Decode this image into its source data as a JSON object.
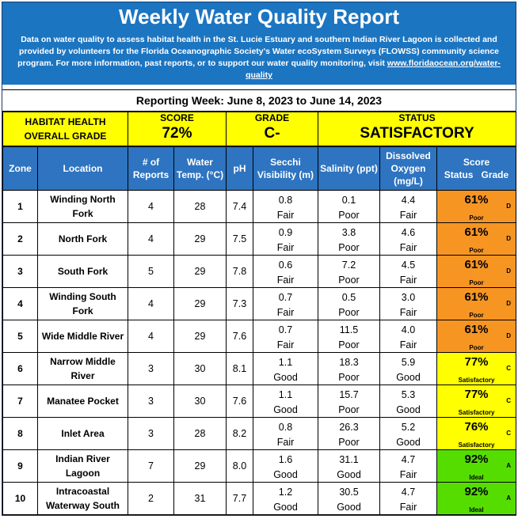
{
  "header": {
    "title": "Weekly Water Quality Report",
    "description": "Data on water quality to assess habitat health in the St. Lucie Estuary and southern Indian River Lagoon is collected and provided by volunteers for the Florida Oceanographic Society's Water ecoSystem Surveys (FLOWSS) community science program.  For more information, past reports, or to support our water quality monitoring, visit ",
    "link": "www.floridaocean.org/water-quality",
    "header_color": "#1c75c1"
  },
  "week": "Reporting Week: June 8, 2023 to June 14, 2023",
  "summary": {
    "habitat_label_1": "HABITAT HEALTH",
    "habitat_label_2": "OVERALL GRADE",
    "score_label": "SCORE",
    "score_value": "72%",
    "grade_label": "GRADE",
    "grade_value": "C-",
    "status_label": "STATUS",
    "status_value": "SATISFACTORY"
  },
  "columns": {
    "zone": "Zone",
    "location": "Location",
    "reports": "# of Reports",
    "temp": "Water Temp. (°C)",
    "ph": "pH",
    "secchi": "Secchi Visibility (m)",
    "salinity": "Salinity (ppt)",
    "oxygen": "Dissolved Oxygen (mg/L)",
    "score_status": "Score Status",
    "grade": "Grade"
  },
  "status_colors": {
    "poor": "#f79523",
    "satisfactory": "#ffff00",
    "ideal": "#55dd00"
  },
  "rows": [
    {
      "zone": "1",
      "location": "Winding North Fork",
      "reports": "4",
      "temp": "28",
      "ph": "7.4",
      "secchi": "0.8",
      "secchi_q": "Fair",
      "salinity": "0.1",
      "salinity_q": "Poor",
      "oxygen": "4.4",
      "oxygen_q": "Fair",
      "score": "61%",
      "status": "Poor",
      "grade": "D",
      "cls": "st-poor"
    },
    {
      "zone": "2",
      "location": "North Fork",
      "reports": "4",
      "temp": "29",
      "ph": "7.5",
      "secchi": "0.9",
      "secchi_q": "Fair",
      "salinity": "3.8",
      "salinity_q": "Poor",
      "oxygen": "4.6",
      "oxygen_q": "Fair",
      "score": "61%",
      "status": "Poor",
      "grade": "D",
      "cls": "st-poor"
    },
    {
      "zone": "3",
      "location": "South Fork",
      "reports": "5",
      "temp": "29",
      "ph": "7.8",
      "secchi": "0.6",
      "secchi_q": "Fair",
      "salinity": "7.2",
      "salinity_q": "Poor",
      "oxygen": "4.5",
      "oxygen_q": "Fair",
      "score": "61%",
      "status": "Poor",
      "grade": "D",
      "cls": "st-poor"
    },
    {
      "zone": "4",
      "location": "Winding South Fork",
      "reports": "4",
      "temp": "29",
      "ph": "7.3",
      "secchi": "0.7",
      "secchi_q": "Fair",
      "salinity": "0.5",
      "salinity_q": "Poor",
      "oxygen": "3.0",
      "oxygen_q": "Fair",
      "score": "61%",
      "status": "Poor",
      "grade": "D",
      "cls": "st-poor"
    },
    {
      "zone": "5",
      "location": "Wide Middle River",
      "reports": "4",
      "temp": "29",
      "ph": "7.6",
      "secchi": "0.7",
      "secchi_q": "Fair",
      "salinity": "11.5",
      "salinity_q": "Poor",
      "oxygen": "4.0",
      "oxygen_q": "Fair",
      "score": "61%",
      "status": "Poor",
      "grade": "D",
      "cls": "st-poor"
    },
    {
      "zone": "6",
      "location": "Narrow Middle River",
      "reports": "3",
      "temp": "30",
      "ph": "8.1",
      "secchi": "1.1",
      "secchi_q": "Good",
      "salinity": "18.3",
      "salinity_q": "Poor",
      "oxygen": "5.9",
      "oxygen_q": "Good",
      "score": "77%",
      "status": "Satisfactory",
      "grade": "C",
      "cls": "st-sat"
    },
    {
      "zone": "7",
      "location": "Manatee Pocket",
      "reports": "3",
      "temp": "30",
      "ph": "7.6",
      "secchi": "1.1",
      "secchi_q": "Good",
      "salinity": "15.7",
      "salinity_q": "Poor",
      "oxygen": "5.3",
      "oxygen_q": "Good",
      "score": "77%",
      "status": "Satisfactory",
      "grade": "C",
      "cls": "st-sat"
    },
    {
      "zone": "8",
      "location": "Inlet Area",
      "reports": "3",
      "temp": "28",
      "ph": "8.2",
      "secchi": "0.8",
      "secchi_q": "Fair",
      "salinity": "26.3",
      "salinity_q": "Poor",
      "oxygen": "5.2",
      "oxygen_q": "Good",
      "score": "76%",
      "status": "Satisfactory",
      "grade": "C",
      "cls": "st-sat"
    },
    {
      "zone": "9",
      "location": "Indian River Lagoon",
      "reports": "7",
      "temp": "29",
      "ph": "8.0",
      "secchi": "1.6",
      "secchi_q": "Good",
      "salinity": "31.1",
      "salinity_q": "Good",
      "oxygen": "4.7",
      "oxygen_q": "Fair",
      "score": "92%",
      "status": "Ideal",
      "grade": "A",
      "cls": "st-ideal"
    },
    {
      "zone": "10",
      "location": "Intracoastal Waterway South",
      "reports": "2",
      "temp": "31",
      "ph": "7.7",
      "secchi": "1.2",
      "secchi_q": "Good",
      "salinity": "30.5",
      "salinity_q": "Good",
      "oxygen": "4.7",
      "oxygen_q": "Fair",
      "score": "92%",
      "status": "Ideal",
      "grade": "A",
      "cls": "st-ideal"
    }
  ]
}
